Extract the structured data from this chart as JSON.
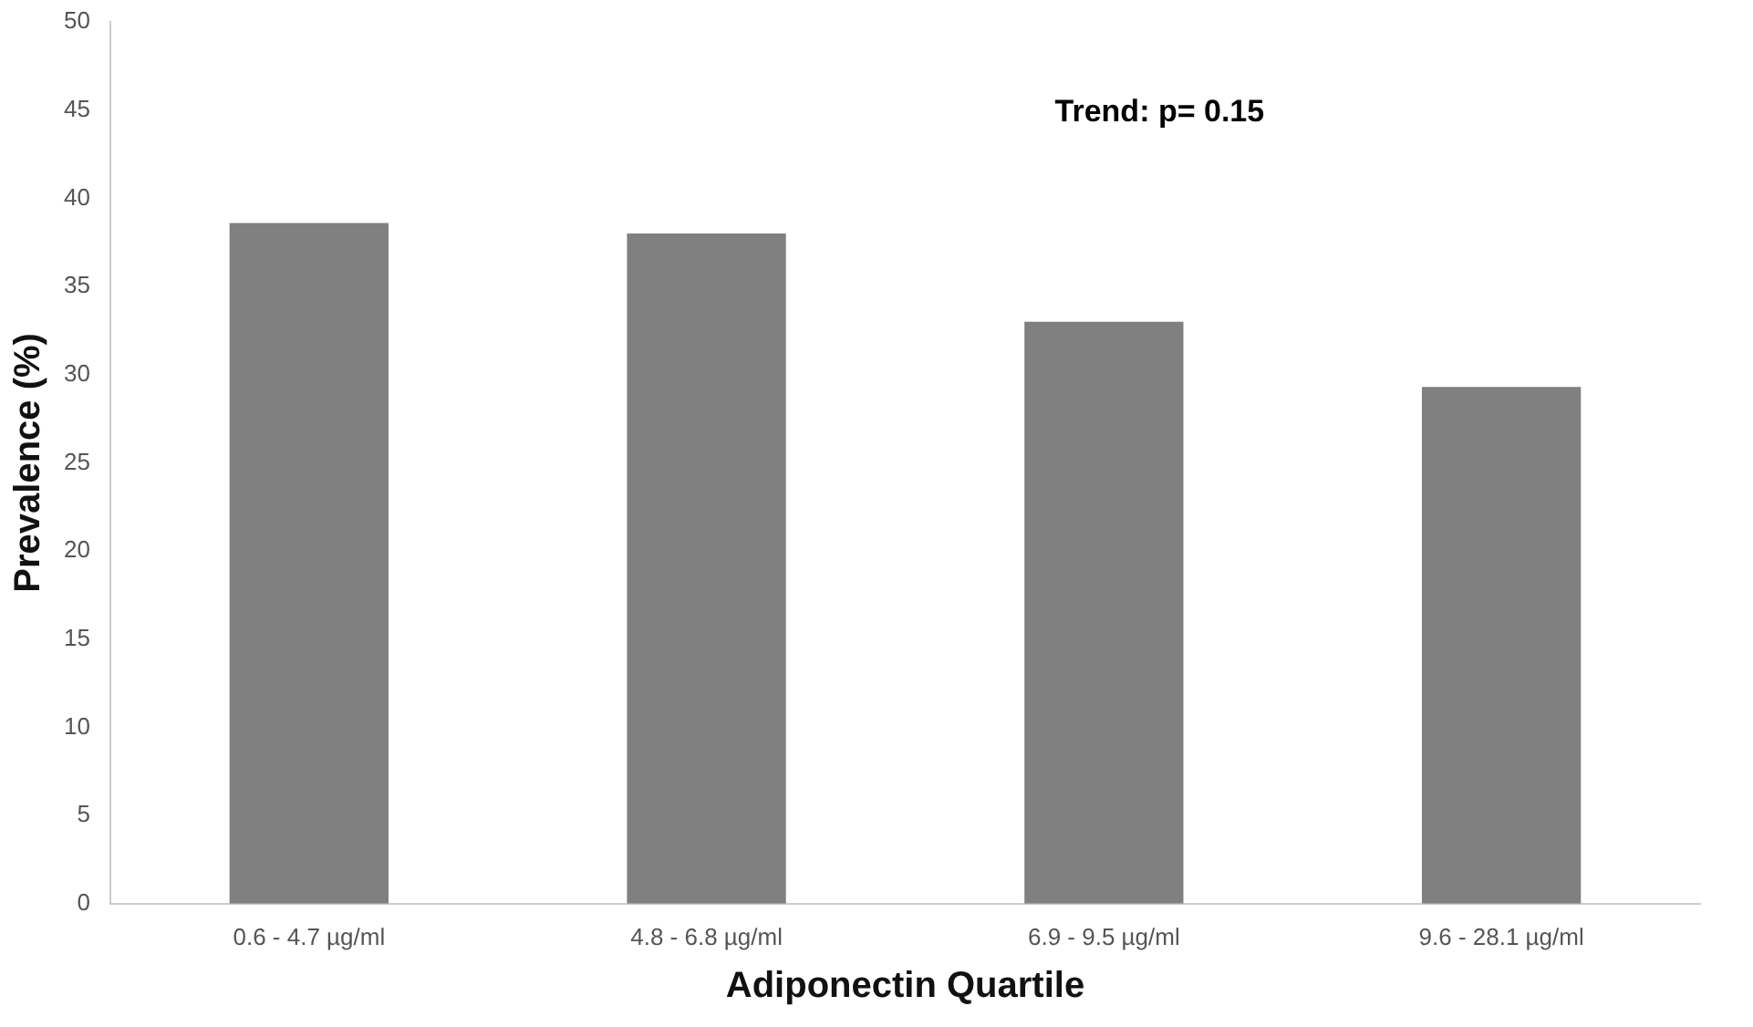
{
  "chart_data": {
    "type": "bar",
    "xlabel": "Adiponectin Quartile",
    "ylabel": "Prevalence (%)",
    "categories": [
      "0.6 - 4.7 µg/ml",
      "4.8 - 6.8 µg/ml",
      "6.9 - 9.5 µg/ml",
      "9.6 - 28.1 µg/ml"
    ],
    "values": [
      38.6,
      38,
      33,
      29.3
    ],
    "color": "#808080",
    "ylim": [
      0,
      50
    ],
    "yticks": [
      0,
      5,
      10,
      15,
      20,
      25,
      30,
      35,
      40,
      45,
      50
    ],
    "grid": false,
    "legend": false,
    "annotations": [
      "Trend: p= 0.15"
    ]
  }
}
